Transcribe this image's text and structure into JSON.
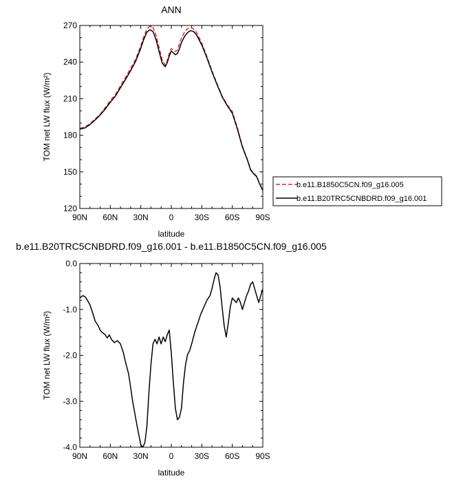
{
  "chart_data": [
    {
      "type": "line",
      "title": "ANN",
      "xlabel": "latitude",
      "ylabel": "TOM net LW flux (W/m²)",
      "xlim": [
        90,
        -90
      ],
      "ylim": [
        120,
        270
      ],
      "x_ticks": [
        90,
        60,
        30,
        0,
        -30,
        -60,
        -90
      ],
      "x_tick_labels": [
        "90N",
        "60N",
        "30N",
        "0",
        "30S",
        "60S",
        "90S"
      ],
      "y_ticks": [
        120,
        150,
        180,
        210,
        240,
        270
      ],
      "y_tick_labels": [
        "120",
        "150",
        "180",
        "210",
        "240",
        "270"
      ],
      "legend_position": "right",
      "series": [
        {
          "name": "b.e11.B1850C5CN.f09_g16.005",
          "color": "#e8242c",
          "dash": "dashed",
          "x": [
            90,
            85,
            80,
            75,
            70,
            65,
            60,
            55,
            50,
            45,
            40,
            35,
            30,
            27,
            24,
            21,
            18,
            15,
            12,
            9,
            6,
            4,
            2,
            0,
            -2,
            -4,
            -6,
            -8,
            -10,
            -13,
            -16,
            -19,
            -22,
            -25,
            -30,
            -35,
            -40,
            -45,
            -50,
            -55,
            -60,
            -65,
            -70,
            -75,
            -78,
            -81,
            -84,
            -87,
            -90
          ],
          "y": [
            185.7,
            186.8,
            189.5,
            193.3,
            197.3,
            202.6,
            208.5,
            213.4,
            220.5,
            227.5,
            234.8,
            242.5,
            253.5,
            261.0,
            267.0,
            269.5,
            268.5,
            262.0,
            252.0,
            242.0,
            237.6,
            241.0,
            247.0,
            251.0,
            249.6,
            248.6,
            250.0,
            255.0,
            260.0,
            264.5,
            267.5,
            268.5,
            267.0,
            264.0,
            255.5,
            244.5,
            232.8,
            222.3,
            212.0,
            205.0,
            199.5,
            186.0,
            171.0,
            160.0,
            152.0,
            149.0,
            146.5,
            140.0,
            135.0
          ]
        },
        {
          "name": "b.e11.B20TRC5CNBDRD.f09_g16.001",
          "color": "#000000",
          "dash": "solid",
          "x": [
            90,
            85,
            80,
            75,
            70,
            65,
            60,
            55,
            50,
            45,
            40,
            35,
            30,
            27,
            24,
            21,
            18,
            15,
            12,
            9,
            6,
            4,
            2,
            0,
            -2,
            -4,
            -6,
            -8,
            -10,
            -13,
            -16,
            -19,
            -22,
            -25,
            -30,
            -35,
            -40,
            -45,
            -50,
            -55,
            -60,
            -65,
            -70,
            -75,
            -78,
            -81,
            -84,
            -87,
            -90
          ],
          "y": [
            185.0,
            186.0,
            188.8,
            192.5,
            196.5,
            201.5,
            207.0,
            212.0,
            219.0,
            225.8,
            233.0,
            240.8,
            251.5,
            258.8,
            264.5,
            266.5,
            265.0,
            258.5,
            248.5,
            239.3,
            236.1,
            239.5,
            245.0,
            249.0,
            247.5,
            246.0,
            247.0,
            251.0,
            256.0,
            261.0,
            264.2,
            265.8,
            265.0,
            262.0,
            254.0,
            243.5,
            232.0,
            221.5,
            211.5,
            204.3,
            198.0,
            185.0,
            170.3,
            159.5,
            151.5,
            148.5,
            146.0,
            139.8,
            134.7
          ]
        }
      ]
    },
    {
      "type": "line",
      "title": "b.e11.B20TRC5CNBDRD.f09_g16.001 - b.e11.B1850C5CN.f09_g16.005",
      "xlabel": "latitude",
      "ylabel": "TOM net LW flux (W/m²)",
      "xlim": [
        90,
        -90
      ],
      "ylim": [
        -4.0,
        0.0
      ],
      "x_ticks": [
        90,
        60,
        30,
        0,
        -30,
        -60,
        -90
      ],
      "x_tick_labels": [
        "90N",
        "60N",
        "30N",
        "0",
        "30S",
        "60S",
        "90S"
      ],
      "y_ticks": [
        0.0,
        -1.0,
        -2.0,
        -3.0,
        -4.0
      ],
      "y_tick_labels": [
        "0.0",
        "-1.0",
        "-2.0",
        "-3.0",
        "-4.0"
      ],
      "series": [
        {
          "color": "#000000",
          "dash": "solid",
          "x": [
            90,
            87,
            85,
            83,
            80,
            77,
            75,
            72,
            70,
            68,
            65,
            63,
            61,
            59,
            56,
            53,
            50,
            47,
            45,
            42,
            40,
            38,
            36,
            34,
            32,
            30,
            28,
            26,
            24,
            22,
            20,
            18,
            16,
            14,
            12,
            10,
            8,
            6,
            4,
            2,
            0,
            -2,
            -4,
            -6,
            -8,
            -10,
            -12,
            -14,
            -16,
            -18,
            -20,
            -23,
            -26,
            -29,
            -32,
            -35,
            -38,
            -40,
            -42,
            -44,
            -46,
            -48,
            -50,
            -52,
            -54,
            -56,
            -58,
            -60,
            -62,
            -64,
            -66,
            -68,
            -70,
            -72,
            -74,
            -76,
            -78,
            -80,
            -82,
            -84,
            -86,
            -88,
            -90
          ],
          "y": [
            -0.75,
            -0.7,
            -0.72,
            -0.78,
            -0.9,
            -1.1,
            -1.25,
            -1.35,
            -1.45,
            -1.5,
            -1.55,
            -1.62,
            -1.55,
            -1.65,
            -1.72,
            -1.68,
            -1.75,
            -1.95,
            -2.15,
            -2.4,
            -2.7,
            -3.0,
            -3.25,
            -3.5,
            -3.72,
            -3.95,
            -4.0,
            -3.9,
            -3.55,
            -2.8,
            -2.2,
            -1.75,
            -1.65,
            -1.75,
            -1.6,
            -1.75,
            -1.6,
            -1.7,
            -1.55,
            -1.45,
            -1.95,
            -2.6,
            -3.15,
            -3.4,
            -3.35,
            -3.15,
            -2.6,
            -2.2,
            -1.98,
            -1.9,
            -1.75,
            -1.5,
            -1.3,
            -1.1,
            -0.95,
            -0.8,
            -0.7,
            -0.55,
            -0.35,
            -0.2,
            -0.25,
            -0.5,
            -0.95,
            -1.35,
            -1.6,
            -1.3,
            -0.95,
            -0.75,
            -0.8,
            -0.85,
            -0.75,
            -0.85,
            -1.0,
            -0.85,
            -0.7,
            -0.6,
            -0.45,
            -0.4,
            -0.55,
            -0.7,
            -0.85,
            -0.7,
            -0.55
          ]
        }
      ]
    }
  ]
}
